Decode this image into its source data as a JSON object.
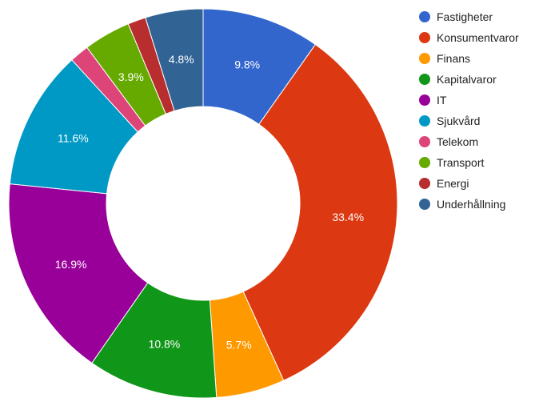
{
  "chart_data": {
    "type": "pie",
    "style": "donut",
    "legend_position": "right",
    "slices": [
      {
        "label": "Fastigheter",
        "value": 9.8,
        "value_label": "9.8%",
        "color": "#3366cc"
      },
      {
        "label": "Konsumentvaror",
        "value": 33.4,
        "value_label": "33.4%",
        "color": "#dc3912"
      },
      {
        "label": "Finans",
        "value": 5.7,
        "value_label": "5.7%",
        "color": "#ff9900"
      },
      {
        "label": "Kapitalvaror",
        "value": 10.8,
        "value_label": "10.8%",
        "color": "#109618"
      },
      {
        "label": "IT",
        "value": 16.9,
        "value_label": "16.9%",
        "color": "#990099"
      },
      {
        "label": "Sjukvård",
        "value": 11.6,
        "value_label": "11.6%",
        "color": "#0099c6"
      },
      {
        "label": "Telekom",
        "value": 1.6,
        "value_label": "",
        "color": "#dd4477"
      },
      {
        "label": "Transport",
        "value": 3.9,
        "value_label": "3.9%",
        "color": "#66aa00"
      },
      {
        "label": "Energi",
        "value": 1.5,
        "value_label": "",
        "color": "#b82e2e"
      },
      {
        "label": "Underhållning",
        "value": 4.8,
        "value_label": "4.8%",
        "color": "#316395"
      }
    ]
  }
}
